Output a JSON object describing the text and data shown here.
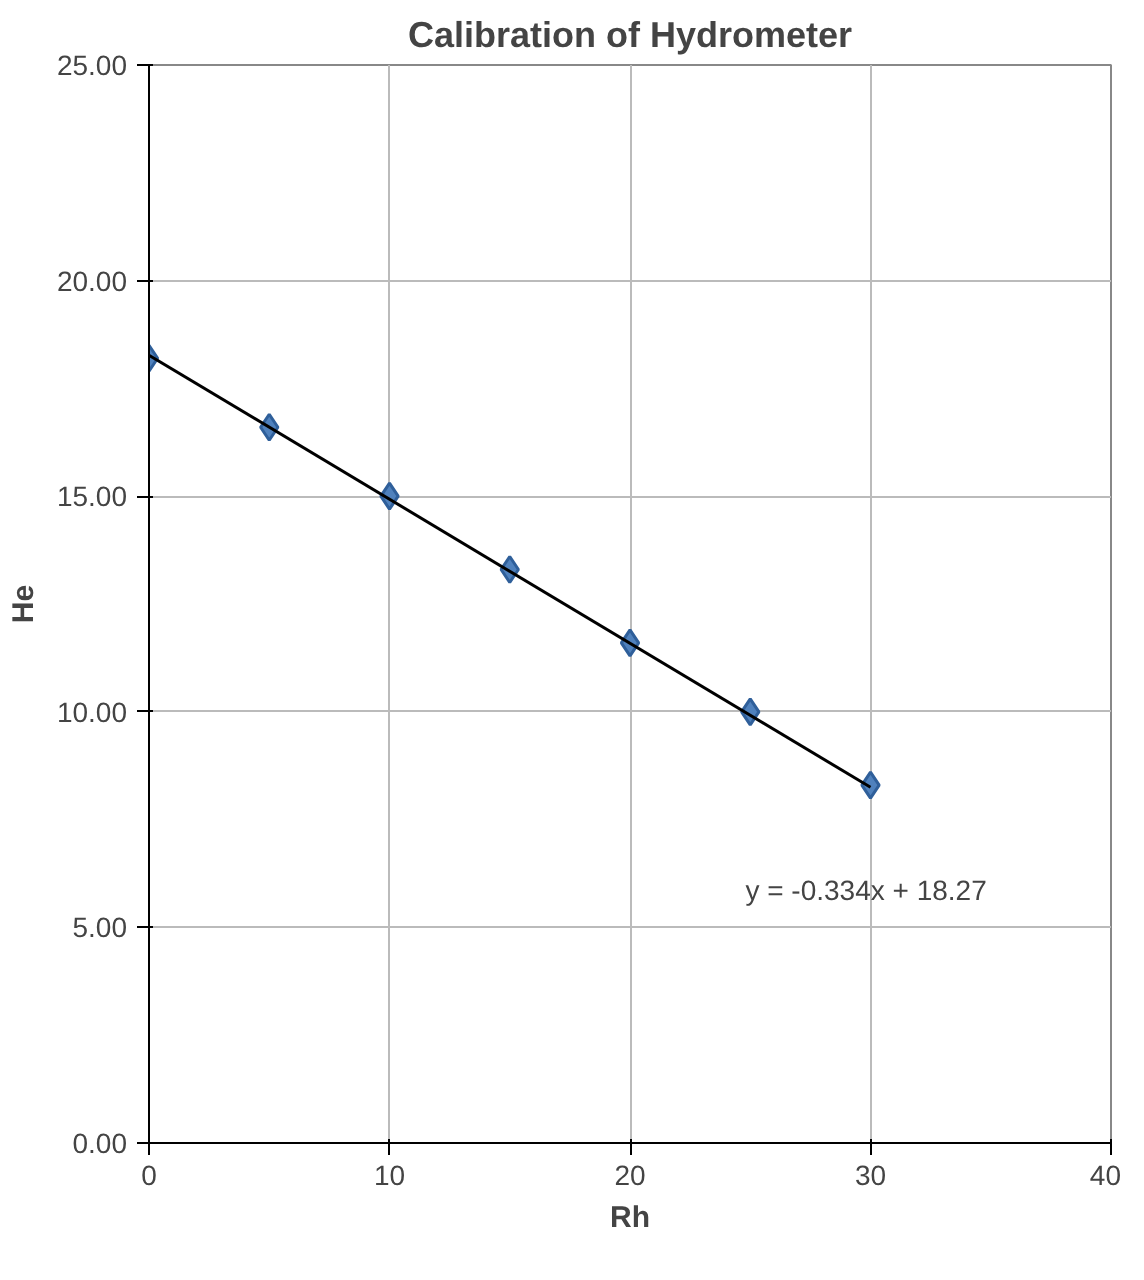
{
  "chart_data": {
    "type": "scatter",
    "title": "Calibration of Hydrometer",
    "xlabel": "Rh",
    "ylabel": "He",
    "xlim": [
      0,
      40
    ],
    "xticks": [
      0,
      10,
      20,
      30,
      40
    ],
    "ylim": [
      0,
      25
    ],
    "yticks": [
      {
        "value": 0,
        "label": "0.00"
      },
      {
        "value": 5,
        "label": "5.00"
      },
      {
        "value": 10,
        "label": "10.00"
      },
      {
        "value": 15,
        "label": "15.00"
      },
      {
        "value": 20,
        "label": "20.00"
      },
      {
        "value": 25,
        "label": "25.00"
      }
    ],
    "grid": true,
    "marker": "diamond",
    "series": [
      {
        "color": "#4f81bd",
        "x": [
          0,
          5,
          10,
          15,
          20,
          25,
          30
        ],
        "values": [
          18.2,
          16.6,
          15.0,
          13.3,
          11.6,
          10.0,
          8.3
        ]
      },
      {
        "type": "line",
        "color": "#000000",
        "x": [
          0,
          30
        ],
        "values": [
          18.27,
          8.25
        ],
        "marker": "none"
      }
    ],
    "annotations": [
      "y = -0.334x + 18.27"
    ]
  }
}
